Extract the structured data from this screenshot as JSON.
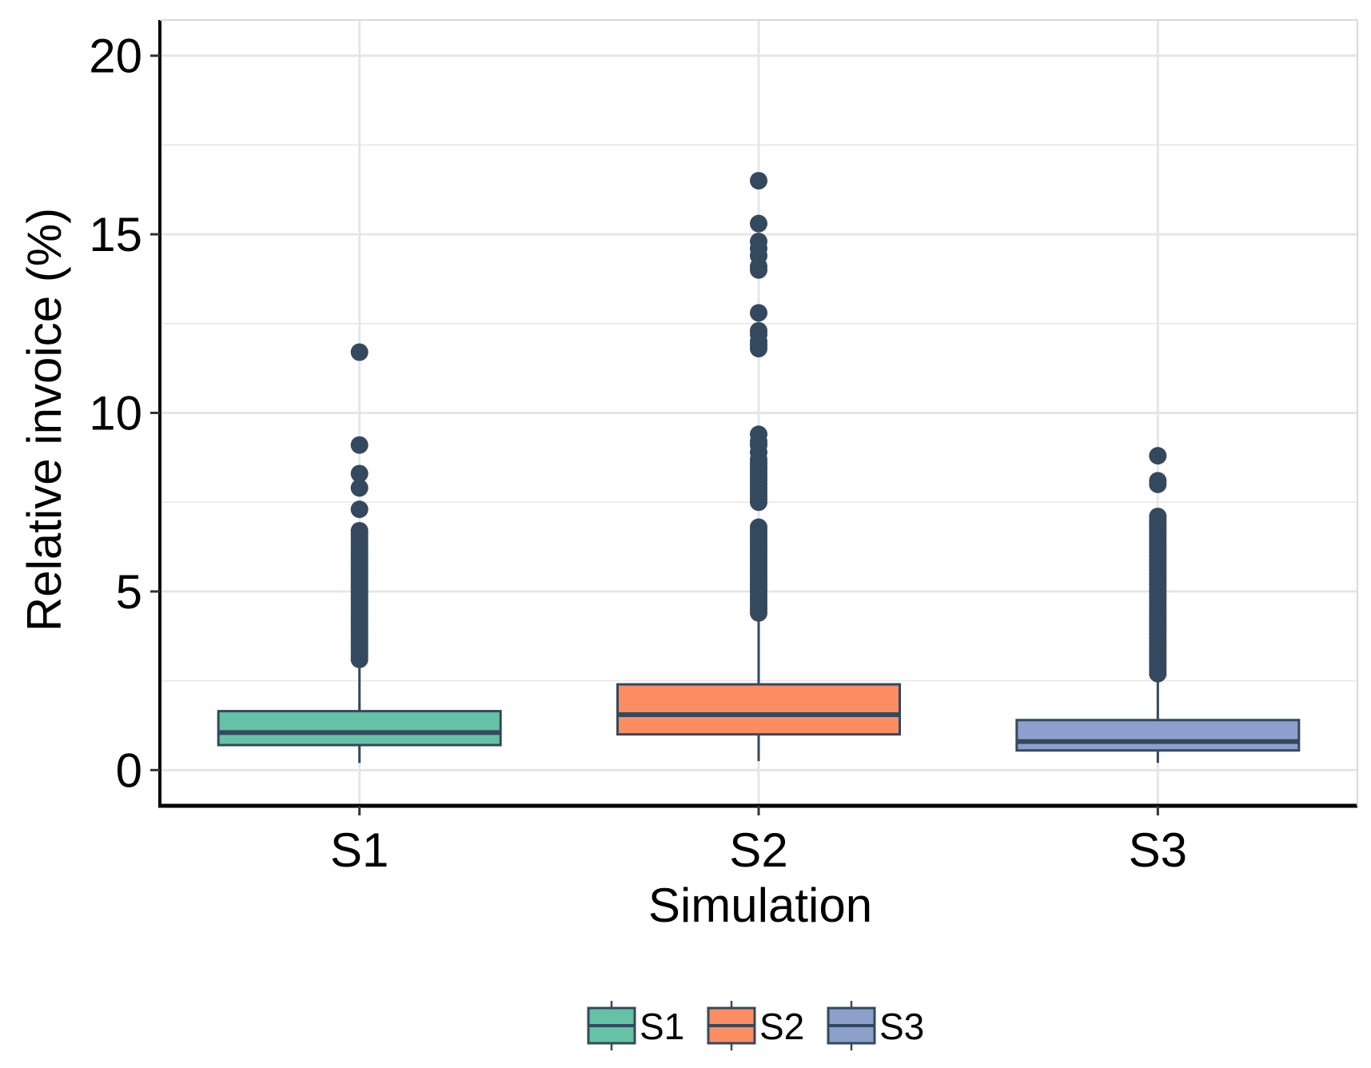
{
  "chart_data": {
    "type": "boxplot",
    "title": "",
    "xlabel": "Simulation",
    "ylabel": "Relative invoice (%)",
    "ylim": [
      -1,
      21
    ],
    "yticks": [
      0,
      5,
      10,
      15,
      20
    ],
    "yticklabels": [
      "0",
      "5",
      "10",
      "15",
      "20"
    ],
    "categories": [
      "S1",
      "S2",
      "S3"
    ],
    "colors": {
      "S1": "#66c2a5",
      "S2": "#fc8d62",
      "S3": "#8da0cb",
      "outline": "#34495e",
      "grid": "#e6e6e6",
      "axis": "#000000"
    },
    "series": [
      {
        "name": "S1",
        "whisker_low": 0.2,
        "q1": 0.7,
        "median": 1.05,
        "q3": 1.65,
        "whisker_high": 3.0,
        "outliers": [
          3.1,
          3.2,
          3.3,
          3.4,
          3.5,
          3.6,
          3.7,
          3.8,
          3.9,
          4.0,
          4.1,
          4.2,
          4.3,
          4.4,
          4.5,
          4.6,
          4.7,
          4.8,
          4.9,
          5.0,
          5.1,
          5.2,
          5.3,
          5.4,
          5.5,
          5.6,
          5.7,
          5.8,
          5.9,
          6.0,
          6.1,
          6.2,
          6.3,
          6.4,
          6.5,
          6.6,
          6.7,
          7.3,
          7.9,
          8.3,
          9.1,
          11.7
        ]
      },
      {
        "name": "S2",
        "whisker_low": 0.25,
        "q1": 1.0,
        "median": 1.55,
        "q3": 2.4,
        "whisker_high": 4.3,
        "outliers": [
          4.4,
          4.5,
          4.6,
          4.7,
          4.8,
          4.9,
          5.0,
          5.1,
          5.2,
          5.3,
          5.4,
          5.5,
          5.6,
          5.7,
          5.8,
          5.9,
          6.0,
          6.1,
          6.2,
          6.3,
          6.4,
          6.5,
          6.6,
          6.7,
          6.8,
          7.5,
          7.6,
          7.7,
          7.8,
          7.9,
          8.0,
          8.1,
          8.2,
          8.3,
          8.4,
          8.5,
          8.6,
          8.7,
          8.9,
          9.1,
          9.2,
          9.4,
          11.8,
          11.9,
          12.0,
          12.2,
          12.3,
          12.8,
          14.0,
          14.1,
          14.4,
          14.6,
          14.8,
          15.3,
          16.5
        ]
      },
      {
        "name": "S3",
        "whisker_low": 0.2,
        "q1": 0.55,
        "median": 0.8,
        "q3": 1.4,
        "whisker_high": 2.6,
        "outliers": [
          2.7,
          2.8,
          2.9,
          3.0,
          3.1,
          3.2,
          3.3,
          3.4,
          3.5,
          3.6,
          3.7,
          3.8,
          3.9,
          4.0,
          4.1,
          4.2,
          4.3,
          4.4,
          4.5,
          4.6,
          4.7,
          4.8,
          4.9,
          5.0,
          5.1,
          5.2,
          5.3,
          5.4,
          5.5,
          5.6,
          5.7,
          5.8,
          5.9,
          6.0,
          6.1,
          6.2,
          6.3,
          6.4,
          6.5,
          6.6,
          6.7,
          6.8,
          6.9,
          7.0,
          7.1,
          8.0,
          8.1,
          8.8
        ]
      }
    ],
    "legend": {
      "position": "bottom",
      "entries": [
        "S1",
        "S2",
        "S3"
      ]
    }
  }
}
